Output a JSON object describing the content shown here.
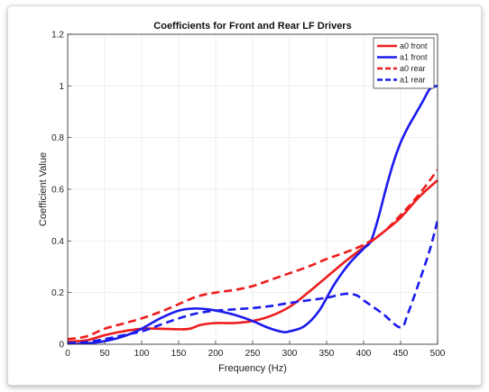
{
  "chart_data": {
    "type": "line",
    "title": "Coefficients for Front and Rear LF Drivers",
    "xlabel": "Frequency (Hz)",
    "ylabel": "Coefficient Value",
    "xlim": [
      0,
      500
    ],
    "ylim": [
      0,
      1.2
    ],
    "xticks": [
      "0",
      "50",
      "100",
      "150",
      "200",
      "250",
      "300",
      "350",
      "400",
      "450",
      "500"
    ],
    "yticks": [
      "0",
      "0.2",
      "0.4",
      "0.6",
      "0.8",
      "1",
      "1.2"
    ],
    "grid": true,
    "legend_position": "top-right",
    "series": [
      {
        "name": "a0 front",
        "color": "#ee1c1c",
        "style": "solid",
        "points": [
          [
            0,
            0.01
          ],
          [
            25,
            0.015
          ],
          [
            50,
            0.035
          ],
          [
            75,
            0.05
          ],
          [
            100,
            0.06
          ],
          [
            125,
            0.06
          ],
          [
            150,
            0.058
          ],
          [
            165,
            0.06
          ],
          [
            180,
            0.075
          ],
          [
            200,
            0.082
          ],
          [
            225,
            0.082
          ],
          [
            250,
            0.09
          ],
          [
            275,
            0.11
          ],
          [
            300,
            0.145
          ],
          [
            325,
            0.2
          ],
          [
            350,
            0.26
          ],
          [
            375,
            0.32
          ],
          [
            400,
            0.375
          ],
          [
            425,
            0.43
          ],
          [
            450,
            0.49
          ],
          [
            475,
            0.57
          ],
          [
            500,
            0.635
          ]
        ]
      },
      {
        "name": "a1 front",
        "color": "#1a1aee",
        "style": "solid",
        "points": [
          [
            0,
            0.0
          ],
          [
            25,
            0.003
          ],
          [
            50,
            0.012
          ],
          [
            75,
            0.03
          ],
          [
            100,
            0.06
          ],
          [
            125,
            0.1
          ],
          [
            150,
            0.13
          ],
          [
            170,
            0.138
          ],
          [
            190,
            0.135
          ],
          [
            210,
            0.125
          ],
          [
            230,
            0.11
          ],
          [
            250,
            0.09
          ],
          [
            270,
            0.065
          ],
          [
            290,
            0.048
          ],
          [
            300,
            0.05
          ],
          [
            320,
            0.07
          ],
          [
            340,
            0.13
          ],
          [
            360,
            0.23
          ],
          [
            380,
            0.31
          ],
          [
            400,
            0.37
          ],
          [
            410,
            0.4
          ],
          [
            420,
            0.49
          ],
          [
            430,
            0.6
          ],
          [
            440,
            0.7
          ],
          [
            450,
            0.78
          ],
          [
            460,
            0.84
          ],
          [
            470,
            0.89
          ],
          [
            480,
            0.94
          ],
          [
            490,
            0.99
          ],
          [
            500,
            1.0
          ]
        ]
      },
      {
        "name": "a0 rear",
        "color": "#ee1c1c",
        "style": "dashed",
        "points": [
          [
            0,
            0.02
          ],
          [
            25,
            0.03
          ],
          [
            50,
            0.06
          ],
          [
            75,
            0.08
          ],
          [
            100,
            0.1
          ],
          [
            125,
            0.125
          ],
          [
            150,
            0.155
          ],
          [
            175,
            0.185
          ],
          [
            200,
            0.2
          ],
          [
            225,
            0.21
          ],
          [
            250,
            0.225
          ],
          [
            275,
            0.25
          ],
          [
            300,
            0.275
          ],
          [
            325,
            0.3
          ],
          [
            350,
            0.33
          ],
          [
            375,
            0.355
          ],
          [
            400,
            0.385
          ],
          [
            425,
            0.43
          ],
          [
            450,
            0.5
          ],
          [
            475,
            0.58
          ],
          [
            500,
            0.675
          ]
        ]
      },
      {
        "name": "a1 rear",
        "color": "#1a1aee",
        "style": "dashed",
        "points": [
          [
            0,
            0.005
          ],
          [
            25,
            0.008
          ],
          [
            50,
            0.02
          ],
          [
            75,
            0.035
          ],
          [
            100,
            0.05
          ],
          [
            125,
            0.075
          ],
          [
            150,
            0.1
          ],
          [
            175,
            0.12
          ],
          [
            200,
            0.13
          ],
          [
            225,
            0.135
          ],
          [
            250,
            0.14
          ],
          [
            275,
            0.148
          ],
          [
            300,
            0.16
          ],
          [
            325,
            0.17
          ],
          [
            350,
            0.18
          ],
          [
            375,
            0.195
          ],
          [
            390,
            0.19
          ],
          [
            400,
            0.17
          ],
          [
            425,
            0.12
          ],
          [
            450,
            0.065
          ],
          [
            460,
            0.12
          ],
          [
            475,
            0.24
          ],
          [
            490,
            0.37
          ],
          [
            500,
            0.48
          ]
        ]
      }
    ]
  }
}
